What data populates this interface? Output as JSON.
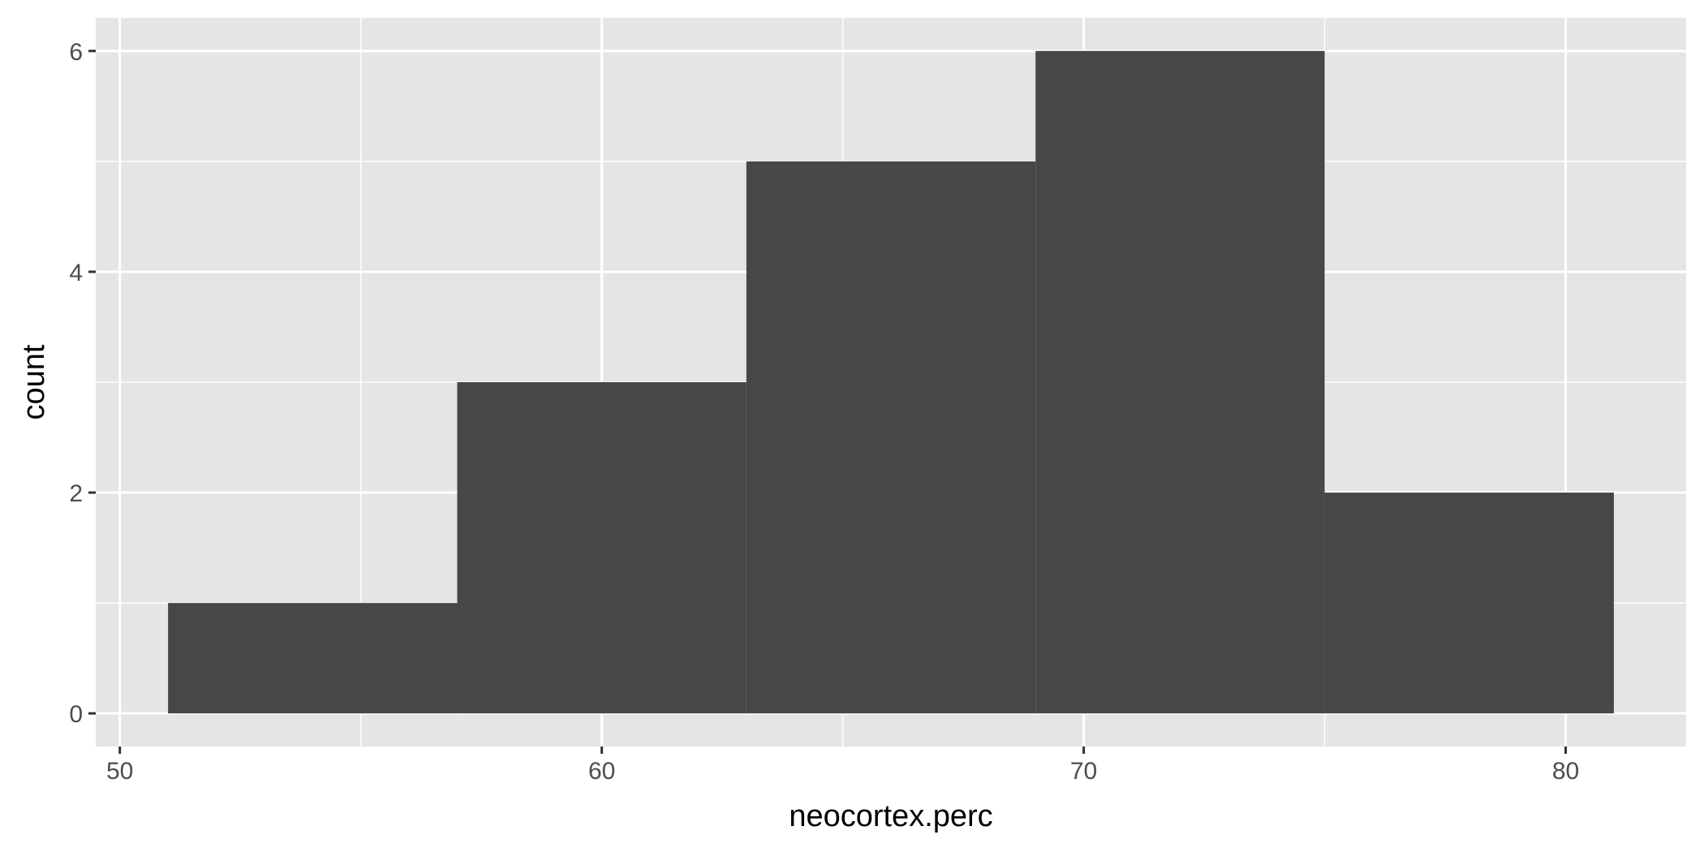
{
  "chart_data": {
    "type": "bar",
    "subtype": "histogram",
    "title": "",
    "xlabel": "neocortex.perc",
    "ylabel": "count",
    "xlim": [
      49.5,
      82.5
    ],
    "ylim": [
      -0.3,
      6.3
    ],
    "x_ticks": [
      50,
      60,
      70,
      80
    ],
    "y_ticks": [
      0,
      2,
      4,
      6
    ],
    "x_minor": [
      55,
      65,
      75
    ],
    "y_minor": [
      1,
      3,
      5
    ],
    "grid": true,
    "legend": "none",
    "bins": [
      {
        "start": 51,
        "end": 57,
        "count": 1
      },
      {
        "start": 57,
        "end": 63,
        "count": 3
      },
      {
        "start": 63,
        "end": 69,
        "count": 5
      },
      {
        "start": 69,
        "end": 75,
        "count": 6
      },
      {
        "start": 75,
        "end": 81,
        "count": 2
      }
    ],
    "colors": {
      "panel": "#e5e5e5",
      "grid": "#ffffff",
      "bar": "#474747",
      "tick_text": "#4d4d4d",
      "tick_line": "#333333"
    }
  }
}
